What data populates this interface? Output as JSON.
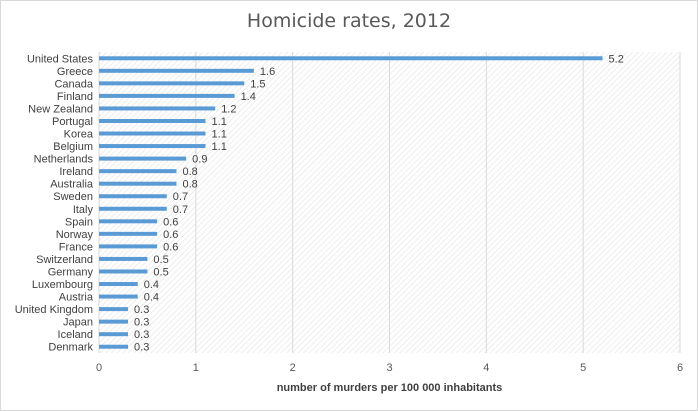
{
  "chart_data": {
    "type": "bar",
    "orientation": "horizontal",
    "title": "Homicide rates, 2012",
    "xlabel": "number of murders per 100 000 inhabitants",
    "ylabel": "",
    "xlim": [
      0,
      6
    ],
    "xticks": [
      "0",
      "1",
      "2",
      "3",
      "4",
      "5",
      "6"
    ],
    "grid": "hatched plot area, vertical gridlines",
    "bar_color": "#5b9bd5",
    "categories": [
      "United States",
      "Greece",
      "Canada",
      "Finland",
      "New Zealand",
      "Portugal",
      "Korea",
      "Belgium",
      "Netherlands",
      "Ireland",
      "Australia",
      "Sweden",
      "Italy",
      "Spain",
      "Norway",
      "France",
      "Switzerland",
      "Germany",
      "Luxembourg",
      "Austria",
      "United Kingdom",
      "Japan",
      "Iceland",
      "Denmark"
    ],
    "values": [
      5.2,
      1.6,
      1.5,
      1.4,
      1.2,
      1.1,
      1.1,
      1.1,
      0.9,
      0.8,
      0.8,
      0.7,
      0.7,
      0.6,
      0.6,
      0.6,
      0.5,
      0.5,
      0.4,
      0.4,
      0.3,
      0.3,
      0.3,
      0.3
    ],
    "value_labels": [
      "5.2",
      "1.6",
      "1.5",
      "1.4",
      "1.2",
      "1.1",
      "1.1",
      "1.1",
      "0.9",
      "0.8",
      "0.8",
      "0.7",
      "0.7",
      "0.6",
      "0.6",
      "0.6",
      "0.5",
      "0.5",
      "0.4",
      "0.4",
      "0.3",
      "0.3",
      "0.3",
      "0.3"
    ]
  }
}
